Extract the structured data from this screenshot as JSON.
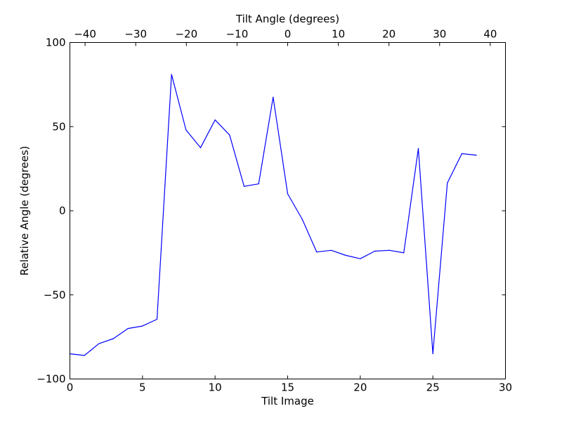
{
  "chart_data": {
    "type": "line",
    "title": "",
    "xlabel": "Tilt Image",
    "ylabel": "Relative Angle (degrees)",
    "x2label": "Tilt Angle (degrees)",
    "xlim": [
      0,
      30
    ],
    "ylim": [
      -100,
      100
    ],
    "x2lim": [
      -43,
      43
    ],
    "grid": false,
    "xticks": [
      0,
      5,
      10,
      15,
      20,
      25,
      30
    ],
    "xtick_labels": [
      "0",
      "5",
      "10",
      "15",
      "20",
      "25",
      "30"
    ],
    "yticks": [
      -100,
      -50,
      0,
      50,
      100
    ],
    "ytick_labels": [
      "−100",
      "−50",
      "0",
      "50",
      "100"
    ],
    "x2ticks": [
      -40,
      -30,
      -20,
      -10,
      0,
      10,
      20,
      30,
      40
    ],
    "x2tick_labels": [
      "−40",
      "−30",
      "−20",
      "−10",
      "0",
      "10",
      "20",
      "30",
      "40"
    ],
    "series": [
      {
        "color": "#0000ff",
        "x": [
          0,
          1,
          2,
          3,
          4,
          5,
          6,
          7,
          8,
          9,
          10,
          11,
          12,
          13,
          14,
          15,
          16,
          17,
          18,
          19,
          20,
          21,
          22,
          23,
          24,
          25,
          26,
          27,
          28
        ],
        "y": [
          -85,
          -86,
          -79,
          -76,
          -70,
          -68.5,
          -64.5,
          81,
          48,
          37.5,
          54,
          45,
          14.5,
          16,
          67.5,
          10,
          -5,
          -24.5,
          -23.5,
          -26.5,
          -28.5,
          -24,
          -23.5,
          -25,
          37,
          -85,
          16.5,
          34,
          33
        ]
      }
    ]
  }
}
